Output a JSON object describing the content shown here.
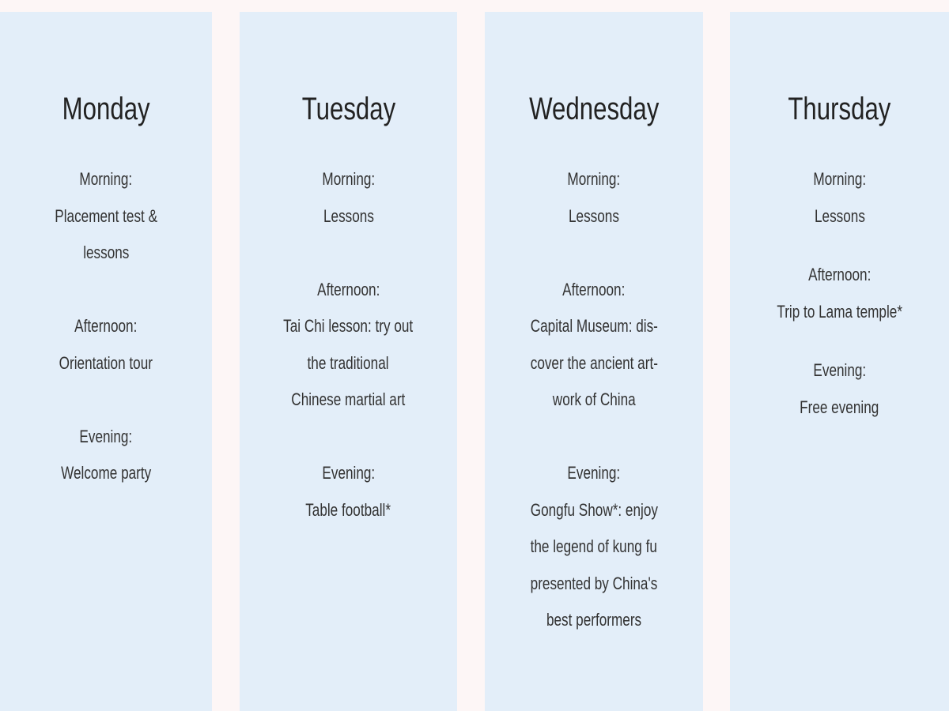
{
  "days": [
    {
      "name": "Monday",
      "groups": [
        {
          "label": "Morning:",
          "lines": [
            "Placement test &",
            "lessons"
          ]
        },
        {
          "label": "Afternoon:",
          "lines": [
            "Orientation tour"
          ]
        },
        {
          "label": "Evening:",
          "lines": [
            "Welcome party"
          ]
        }
      ]
    },
    {
      "name": "Tuesday",
      "groups": [
        {
          "label": "Morning:",
          "lines": [
            "Lessons"
          ]
        },
        {
          "label": "Afternoon:",
          "lines": [
            "Tai Chi lesson: try out",
            "the traditional",
            "Chinese martial art"
          ]
        },
        {
          "label": "Evening:",
          "lines": [
            "Table football*"
          ]
        }
      ]
    },
    {
      "name": "Wednesday",
      "groups": [
        {
          "label": "Morning:",
          "lines": [
            "Lessons"
          ]
        },
        {
          "label": "Afternoon:",
          "lines": [
            "Capital Museum: dis-",
            "cover the ancient art-",
            "work of China"
          ]
        },
        {
          "label": "Evening:",
          "lines": [
            "Gongfu Show*: enjoy",
            "the legend of kung fu",
            "presented by China's",
            "best performers"
          ]
        }
      ]
    },
    {
      "name": "Thursday",
      "groups": [
        {
          "label": "Morning:",
          "lines": [
            "Lessons"
          ]
        },
        {
          "label": "Afternoon:",
          "lines": [
            "Trip to Lama temple*"
          ]
        },
        {
          "label": "Evening:",
          "lines": [
            "Free evening"
          ]
        }
      ]
    }
  ],
  "colors": {
    "card": "#e3eef9",
    "background": "#fdf6f6",
    "text": "#333333"
  }
}
